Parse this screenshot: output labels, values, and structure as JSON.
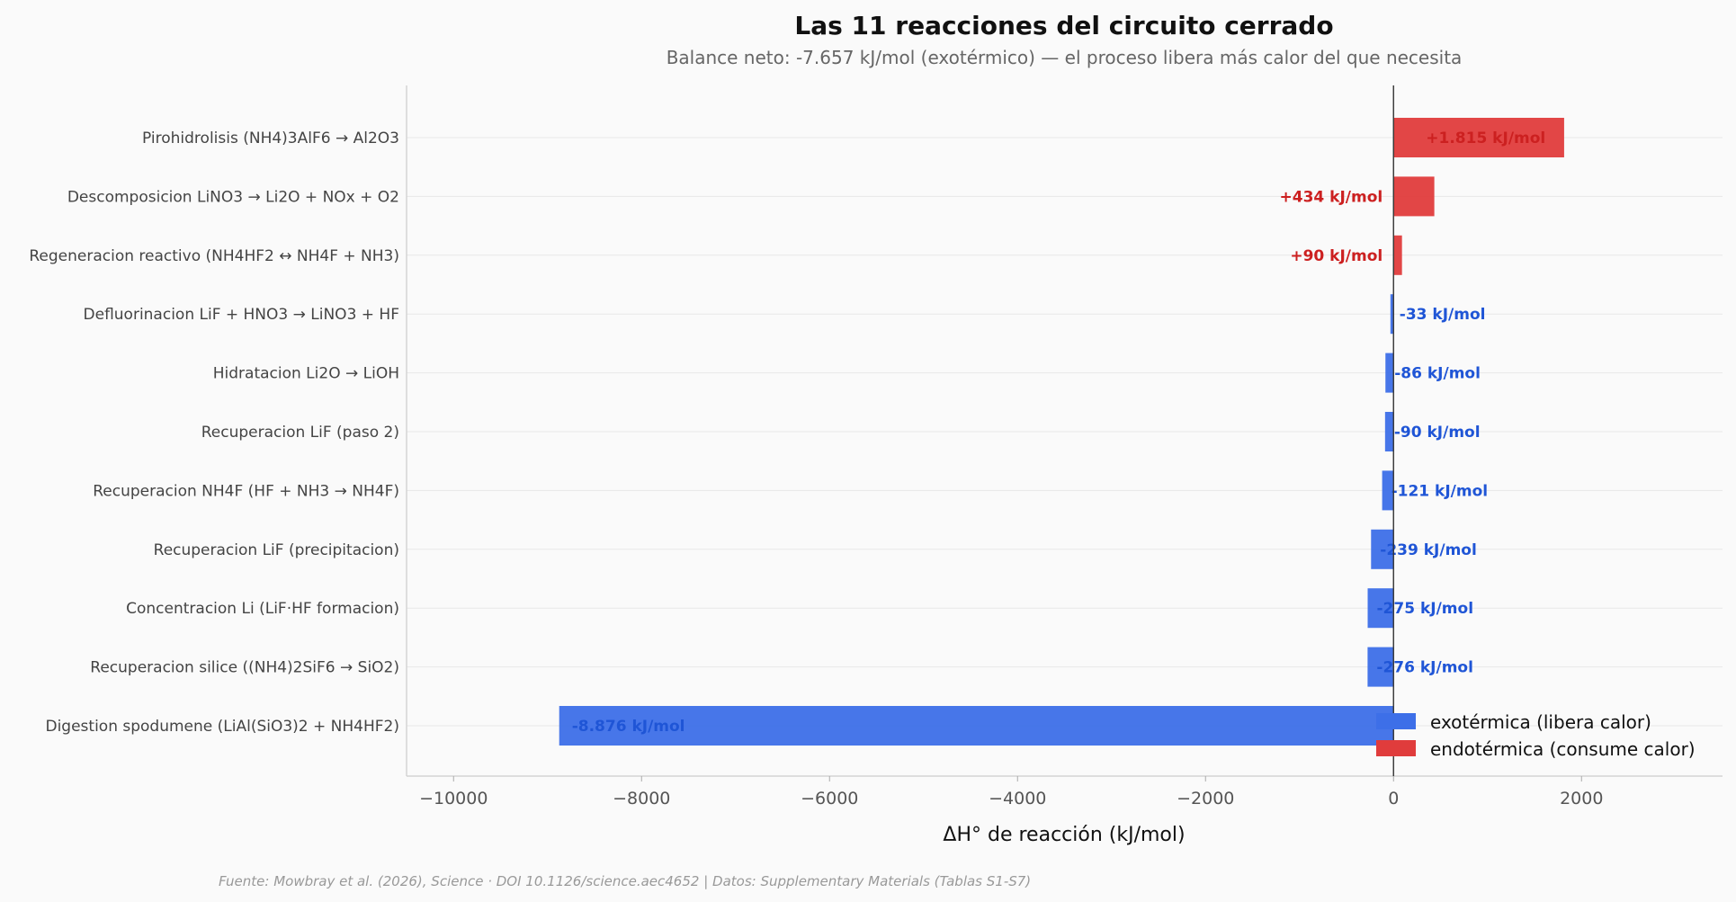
{
  "chart_data": {
    "type": "bar",
    "orientation": "horizontal",
    "title": "Las 11 reacciones del circuito cerrado",
    "subtitle": "Balance neto: -7.657 kJ/mol (exotérmico) — el proceso libera más calor del que necesita",
    "xlabel": "ΔH° de reacción (kJ/mol)",
    "xlim": [
      -10500,
      3500
    ],
    "xticks": [
      -10000,
      -8000,
      -6000,
      -4000,
      -2000,
      0,
      2000
    ],
    "xtick_labels": [
      "−10000",
      "−8000",
      "−6000",
      "−4000",
      "−2000",
      "0",
      "2000"
    ],
    "categories": [
      "Pirohidrolisis (NH4)3AlF6 → Al2O3",
      "Descomposicion LiNO3 → Li2O + NOx + O2",
      "Regeneracion reactivo (NH4HF2 ↔ NH4F + NH3)",
      "Defluorinacion LiF + HNO3 → LiNO3 + HF",
      "Hidratacion Li2O → LiOH",
      "Recuperacion LiF (paso 2)",
      "Recuperacion NH4F (HF + NH3 → NH4F)",
      "Recuperacion LiF (precipitacion)",
      "Concentracion Li (LiF·HF formacion)",
      "Recuperacion silice ((NH4)2SiF6 → SiO2)",
      "Digestion spodumene (LiAl(SiO3)2 + NH4HF2)"
    ],
    "values": [
      1815,
      434,
      90,
      -33,
      -86,
      -90,
      -121,
      -239,
      -275,
      -276,
      -8876
    ],
    "data_labels": [
      "+1.815 kJ/mol",
      "+434 kJ/mol",
      "+90 kJ/mol",
      "-33 kJ/mol",
      "-86 kJ/mol",
      "-90 kJ/mol",
      "-121 kJ/mol",
      "-239 kJ/mol",
      "-275 kJ/mol",
      "-276 kJ/mol",
      "-8.876 kJ/mol"
    ],
    "colors": {
      "exothermic_bar": "#3d6fe8",
      "endothermic_bar": "#e03c3c",
      "exothermic_label": "#1f55d6",
      "endothermic_label": "#cc2020"
    },
    "legend": {
      "placement": "lower-right",
      "entries": [
        "exotérmica (libera calor)",
        "endotérmica (consume calor)"
      ]
    },
    "grid": "y",
    "source": "Fuente: Mowbray et al. (2026), Science · DOI 10.1126/science.aec4652 | Datos: Supplementary Materials (Tablas S1-S7)"
  }
}
